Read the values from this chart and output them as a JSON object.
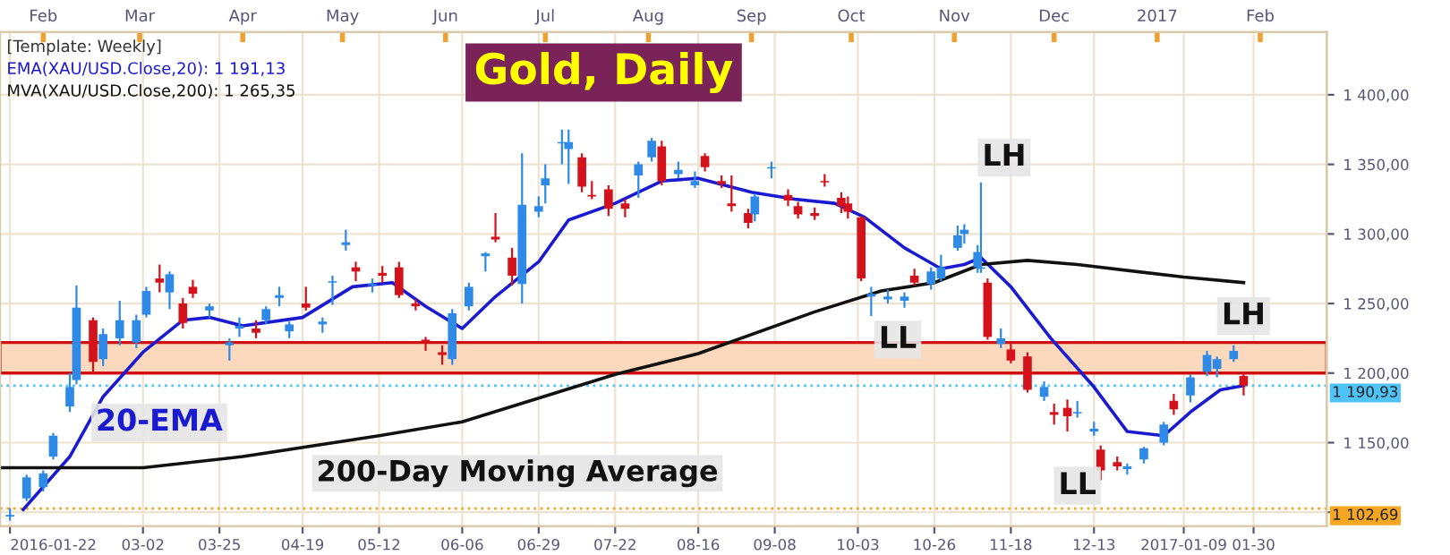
{
  "chart_data": {
    "type": "candlestick",
    "title": "Gold, Daily",
    "xlim": [
      "2016-01-19",
      "2017-02-21"
    ],
    "ylim": [
      1090,
      1445
    ],
    "xticks": [
      {
        "value": "2016-01-22",
        "label": "2016-01-22"
      },
      {
        "value": "2016-03-02",
        "label": "03-02"
      },
      {
        "value": "2016-03-25",
        "label": "03-25"
      },
      {
        "value": "2016-04-19",
        "label": "04-19"
      },
      {
        "value": "2016-05-12",
        "label": "05-12"
      },
      {
        "value": "2016-06-06",
        "label": "06-06"
      },
      {
        "value": "2016-06-29",
        "label": "06-29"
      },
      {
        "value": "2016-07-22",
        "label": "07-22"
      },
      {
        "value": "2016-08-16",
        "label": "08-16"
      },
      {
        "value": "2016-09-08",
        "label": "09-08"
      },
      {
        "value": "2016-10-03",
        "label": "10-03"
      },
      {
        "value": "2016-10-26",
        "label": "10-26"
      },
      {
        "value": "2016-11-18",
        "label": "11-18"
      },
      {
        "value": "2016-12-13",
        "label": "12-13"
      },
      {
        "value": "2017-01-09",
        "label": "2017-01-09"
      },
      {
        "value": "2017-01-30",
        "label": "01-30"
      }
    ],
    "x2lim": [
      "2016-01-19",
      "2017-02-21"
    ],
    "x2ticks": [
      {
        "value": "2016-02-01",
        "label": "Feb"
      },
      {
        "value": "2016-03-01",
        "label": "Mar"
      },
      {
        "value": "2016-04-01",
        "label": "Apr"
      },
      {
        "value": "2016-05-01",
        "label": "May"
      },
      {
        "value": "2016-06-01",
        "label": "Jun"
      },
      {
        "value": "2016-07-01",
        "label": "Jul"
      },
      {
        "value": "2016-08-01",
        "label": "Aug"
      },
      {
        "value": "2016-09-01",
        "label": "Sep"
      },
      {
        "value": "2016-10-01",
        "label": "Oct"
      },
      {
        "value": "2016-11-01",
        "label": "Nov"
      },
      {
        "value": "2016-12-01",
        "label": "Dec"
      },
      {
        "value": "2017-01-01",
        "label": "2017"
      },
      {
        "value": "2017-02-01",
        "label": "Feb"
      }
    ],
    "yticks": [
      {
        "value": 1100,
        "label": null
      },
      {
        "value": 1150,
        "label": "1 150,00"
      },
      {
        "value": 1200,
        "label": "1 200,00"
      },
      {
        "value": 1250,
        "label": "1 250,00"
      },
      {
        "value": 1300,
        "label": "1 300,00"
      },
      {
        "value": 1350,
        "label": "1 350,00"
      },
      {
        "value": 1400,
        "label": "1 400,00"
      }
    ],
    "grid": true,
    "series": [
      {
        "x": [
          "2016-01-22",
          "2016-01-27",
          "2016-02-01",
          "2016-02-04",
          "2016-02-09",
          "2016-02-11",
          "2016-02-16",
          "2016-02-19",
          "2016-02-24",
          "2016-02-29",
          "2016-03-03",
          "2016-03-07",
          "2016-03-10",
          "2016-03-14",
          "2016-03-17",
          "2016-03-22",
          "2016-03-28",
          "2016-03-31",
          "2016-04-05",
          "2016-04-08",
          "2016-04-12",
          "2016-04-15",
          "2016-04-20",
          "2016-04-25",
          "2016-04-28",
          "2016-05-02",
          "2016-05-05",
          "2016-05-10",
          "2016-05-13",
          "2016-05-18",
          "2016-05-23",
          "2016-05-26",
          "2016-05-31",
          "2016-06-03",
          "2016-06-08",
          "2016-06-13",
          "2016-06-16",
          "2016-06-21",
          "2016-06-24",
          "2016-06-29",
          "2016-07-01",
          "2016-07-06",
          "2016-07-08",
          "2016-07-12",
          "2016-07-15",
          "2016-07-20",
          "2016-07-25",
          "2016-07-29",
          "2016-08-02",
          "2016-08-05",
          "2016-08-10",
          "2016-08-15",
          "2016-08-18",
          "2016-08-23",
          "2016-08-26",
          "2016-08-31",
          "2016-09-02",
          "2016-09-07",
          "2016-09-12",
          "2016-09-15",
          "2016-09-20",
          "2016-09-23",
          "2016-09-28",
          "2016-09-30",
          "2016-10-04",
          "2016-10-07",
          "2016-10-12",
          "2016-10-17",
          "2016-10-20",
          "2016-10-25",
          "2016-10-28",
          "2016-11-02",
          "2016-11-04",
          "2016-11-08",
          "2016-11-09",
          "2016-11-11",
          "2016-11-15",
          "2016-11-18",
          "2016-11-23",
          "2016-11-28",
          "2016-12-01",
          "2016-12-05",
          "2016-12-08",
          "2016-12-13",
          "2016-12-15",
          "2016-12-20",
          "2016-12-23",
          "2016-12-28",
          "2017-01-03",
          "2017-01-06",
          "2017-01-11",
          "2017-01-16",
          "2017-01-19",
          "2017-01-24",
          "2017-01-27"
        ],
        "ohlc": [
          [
            1097,
            1103,
            1094,
            1098
          ],
          [
            1110,
            1127,
            1108,
            1125
          ],
          [
            1118,
            1130,
            1115,
            1128
          ],
          [
            1140,
            1157,
            1138,
            1155
          ],
          [
            1176,
            1200,
            1172,
            1190
          ],
          [
            1195,
            1263,
            1192,
            1247
          ],
          [
            1238,
            1240,
            1200,
            1208
          ],
          [
            1210,
            1232,
            1205,
            1228
          ],
          [
            1225,
            1252,
            1220,
            1238
          ],
          [
            1222,
            1242,
            1218,
            1238
          ],
          [
            1242,
            1262,
            1240,
            1259
          ],
          [
            1268,
            1278,
            1258,
            1265
          ],
          [
            1258,
            1273,
            1246,
            1271
          ],
          [
            1250,
            1254,
            1232,
            1236
          ],
          [
            1262,
            1267,
            1254,
            1257
          ],
          [
            1245,
            1250,
            1240,
            1248
          ],
          [
            1220,
            1225,
            1209,
            1222
          ],
          [
            1232,
            1240,
            1226,
            1234
          ],
          [
            1232,
            1238,
            1225,
            1229
          ],
          [
            1238,
            1248,
            1235,
            1246
          ],
          [
            1254,
            1262,
            1248,
            1256
          ],
          [
            1230,
            1237,
            1225,
            1235
          ],
          [
            1250,
            1262,
            1245,
            1247
          ],
          [
            1235,
            1240,
            1229,
            1237
          ],
          [
            1265,
            1270,
            1249,
            1266
          ],
          [
            1292,
            1303,
            1288,
            1294
          ],
          [
            1276,
            1280,
            1266,
            1273
          ],
          [
            1263,
            1268,
            1258,
            1264
          ],
          [
            1272,
            1277,
            1265,
            1270
          ],
          [
            1276,
            1280,
            1254,
            1256
          ],
          [
            1250,
            1253,
            1245,
            1248
          ],
          [
            1224,
            1226,
            1216,
            1222
          ],
          [
            1215,
            1220,
            1206,
            1213
          ],
          [
            1210,
            1246,
            1206,
            1243
          ],
          [
            1248,
            1265,
            1245,
            1262
          ],
          [
            1284,
            1287,
            1273,
            1286
          ],
          [
            1298,
            1315,
            1294,
            1296
          ],
          [
            1283,
            1290,
            1263,
            1270
          ],
          [
            1264,
            1358,
            1250,
            1321
          ],
          [
            1316,
            1327,
            1312,
            1320
          ],
          [
            1335,
            1350,
            1322,
            1340
          ],
          [
            1365,
            1375,
            1350,
            1366
          ],
          [
            1361,
            1375,
            1336,
            1366
          ],
          [
            1355,
            1358,
            1330,
            1334
          ],
          [
            1328,
            1338,
            1325,
            1327
          ],
          [
            1332,
            1335,
            1313,
            1318
          ],
          [
            1322,
            1325,
            1312,
            1318
          ],
          [
            1342,
            1352,
            1326,
            1350
          ],
          [
            1355,
            1369,
            1352,
            1367
          ],
          [
            1363,
            1367,
            1335,
            1338
          ],
          [
            1343,
            1352,
            1340,
            1346
          ],
          [
            1335,
            1345,
            1333,
            1338
          ],
          [
            1356,
            1358,
            1345,
            1348
          ],
          [
            1338,
            1342,
            1333,
            1336
          ],
          [
            1322,
            1342,
            1316,
            1320
          ],
          [
            1315,
            1318,
            1304,
            1308
          ],
          [
            1314,
            1329,
            1309,
            1327
          ],
          [
            1347,
            1352,
            1340,
            1348
          ],
          [
            1328,
            1332,
            1320,
            1324
          ],
          [
            1320,
            1323,
            1311,
            1314
          ],
          [
            1315,
            1319,
            1310,
            1313
          ],
          [
            1338,
            1343,
            1334,
            1337
          ],
          [
            1326,
            1330,
            1315,
            1320
          ],
          [
            1322,
            1327,
            1311,
            1316
          ],
          [
            1312,
            1313,
            1266,
            1268
          ],
          [
            1255,
            1262,
            1241,
            1257
          ],
          [
            1253,
            1260,
            1250,
            1255
          ],
          [
            1252,
            1258,
            1247,
            1255
          ],
          [
            1270,
            1275,
            1263,
            1265
          ],
          [
            1264,
            1276,
            1260,
            1273
          ],
          [
            1268,
            1285,
            1266,
            1276
          ],
          [
            1290,
            1306,
            1288,
            1299
          ],
          [
            1300,
            1307,
            1293,
            1303
          ],
          [
            1276,
            1292,
            1272,
            1287
          ],
          [
            1275,
            1337,
            1272,
            1276
          ],
          [
            1265,
            1268,
            1224,
            1226
          ],
          [
            1221,
            1232,
            1218,
            1225
          ],
          [
            1217,
            1221,
            1207,
            1209
          ],
          [
            1212,
            1215,
            1186,
            1188
          ],
          [
            1183,
            1194,
            1180,
            1190
          ],
          [
            1172,
            1178,
            1163,
            1170
          ],
          [
            1175,
            1181,
            1158,
            1169
          ],
          [
            1171,
            1180,
            1168,
            1172
          ],
          [
            1158,
            1165,
            1155,
            1160
          ],
          [
            1145,
            1148,
            1123,
            1130
          ],
          [
            1136,
            1140,
            1130,
            1133
          ],
          [
            1131,
            1135,
            1127,
            1133
          ],
          [
            1138,
            1147,
            1135,
            1146
          ],
          [
            1150,
            1165,
            1148,
            1163
          ],
          [
            1180,
            1185,
            1170,
            1174
          ],
          [
            1184,
            1199,
            1179,
            1197
          ],
          [
            1201,
            1216,
            1198,
            1213
          ],
          [
            1203,
            1212,
            1197,
            1210
          ],
          [
            1210,
            1220,
            1208,
            1216
          ],
          [
            1198,
            1200,
            1184,
            1191
          ]
        ],
        "colors": [
          "#2e8ae6",
          "#2e8ae6",
          "#2e8ae6",
          "#2e8ae6",
          "#2e8ae6",
          "#2e8ae6",
          "#d4121b",
          "#2e8ae6",
          "#2e8ae6",
          "#2e8ae6",
          "#2e8ae6",
          "#d4121b",
          "#2e8ae6",
          "#d4121b",
          "#d4121b",
          "#2e8ae6",
          "#2e8ae6",
          "#2e8ae6",
          "#d4121b",
          "#2e8ae6",
          "#2e8ae6",
          "#2e8ae6",
          "#d4121b",
          "#2e8ae6",
          "#2e8ae6",
          "#2e8ae6",
          "#d4121b",
          "#2e8ae6",
          "#d4121b",
          "#d4121b",
          "#d4121b",
          "#d4121b",
          "#d4121b",
          "#2e8ae6",
          "#2e8ae6",
          "#2e8ae6",
          "#d4121b",
          "#d4121b",
          "#2e8ae6",
          "#2e8ae6",
          "#2e8ae6",
          "#2e8ae6",
          "#2e8ae6",
          "#d4121b",
          "#d4121b",
          "#d4121b",
          "#d4121b",
          "#2e8ae6",
          "#2e8ae6",
          "#d4121b",
          "#2e8ae6",
          "#2e8ae6",
          "#d4121b",
          "#d4121b",
          "#d4121b",
          "#d4121b",
          "#2e8ae6",
          "#2e8ae6",
          "#d4121b",
          "#d4121b",
          "#d4121b",
          "#d4121b",
          "#d4121b",
          "#d4121b",
          "#d4121b",
          "#2e8ae6",
          "#2e8ae6",
          "#2e8ae6",
          "#d4121b",
          "#2e8ae6",
          "#2e8ae6",
          "#2e8ae6",
          "#2e8ae6",
          "#2e8ae6",
          "#2e8ae6",
          "#d4121b",
          "#2e8ae6",
          "#d4121b",
          "#d4121b",
          "#2e8ae6",
          "#d4121b",
          "#d4121b",
          "#2e8ae6",
          "#2e8ae6",
          "#d4121b",
          "#d4121b",
          "#2e8ae6",
          "#2e8ae6",
          "#2e8ae6",
          "#d4121b",
          "#2e8ae6",
          "#2e8ae6",
          "#2e8ae6",
          "#2e8ae6",
          "#d4121b"
        ]
      },
      {
        "type": "line",
        "name": "EMA(XAU/USD.Close,20): 1 191,13",
        "color": "#1a1ad0",
        "x": [
          "2016-01-26",
          "2016-02-09",
          "2016-02-19",
          "2016-03-02",
          "2016-03-14",
          "2016-03-22",
          "2016-04-01",
          "2016-04-19",
          "2016-05-04",
          "2016-05-16",
          "2016-05-26",
          "2016-06-06",
          "2016-06-16",
          "2016-06-29",
          "2016-07-08",
          "2016-07-22",
          "2016-08-05",
          "2016-08-16",
          "2016-09-01",
          "2016-09-14",
          "2016-09-26",
          "2016-10-05",
          "2016-10-17",
          "2016-10-28",
          "2016-11-04",
          "2016-11-09",
          "2016-11-18",
          "2016-11-30",
          "2016-12-13",
          "2016-12-23",
          "2017-01-03",
          "2017-01-11",
          "2017-01-20",
          "2017-01-27"
        ],
        "values": [
          1102,
          1140,
          1183,
          1215,
          1238,
          1240,
          1234,
          1240,
          1262,
          1265,
          1248,
          1232,
          1255,
          1280,
          1310,
          1322,
          1338,
          1340,
          1330,
          1325,
          1322,
          1312,
          1290,
          1275,
          1278,
          1283,
          1262,
          1225,
          1190,
          1158,
          1155,
          1172,
          1188,
          1191
        ]
      },
      {
        "type": "line",
        "name": "MVA(XAU/USD.Close,200): 1 265,35",
        "color": "#111111",
        "x": [
          "2016-01-19",
          "2016-03-02",
          "2016-04-01",
          "2016-05-12",
          "2016-06-06",
          "2016-07-22",
          "2016-08-16",
          "2016-09-20",
          "2016-10-10",
          "2016-10-26",
          "2016-11-09",
          "2016-11-23",
          "2016-12-08",
          "2017-01-09",
          "2017-01-27"
        ],
        "values": [
          1132,
          1132,
          1140,
          1155,
          1165,
          1199,
          1214,
          1244,
          1259,
          1265,
          1278,
          1281,
          1278,
          1269,
          1265
        ]
      }
    ],
    "bands": [
      {
        "axis": "y",
        "from": 1200,
        "to": 1222,
        "color": "#fcd9bd"
      }
    ],
    "ref_lines": [
      {
        "axis": "y",
        "value": 1190.93,
        "label": "1 190,93",
        "color": "#4fc3f7",
        "line_style": "dotted"
      },
      {
        "axis": "y",
        "value": 1102.69,
        "label": "1 102,69",
        "color": "#f5a623",
        "line_style": "dotted"
      }
    ],
    "annotations": [
      "[Template: Weekly]",
      {
        "text": "LH",
        "x": "2016-11-16",
        "y": 1355
      },
      {
        "text": "LL",
        "x": "2016-10-15",
        "y": 1224
      },
      {
        "text": "LL",
        "x": "2016-12-08",
        "y": 1119
      },
      {
        "text": "LH",
        "x": "2017-01-27",
        "y": 1241
      },
      "20-EMA",
      "200-Day Moving Average"
    ]
  }
}
